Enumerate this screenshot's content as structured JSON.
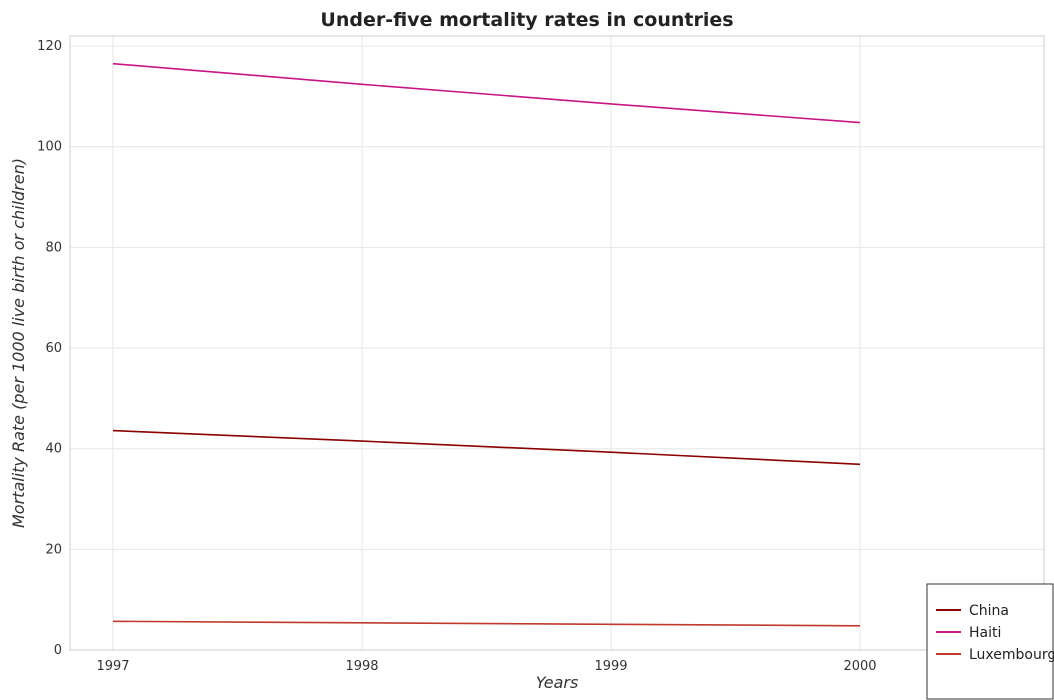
{
  "chart_data": {
    "type": "line",
    "title": "Under-five mortality rates in countries",
    "xlabel": "Years",
    "ylabel": "Mortality Rate (per 1000 live birth or children)",
    "categories": [
      "1997",
      "1998",
      "1999",
      "2000"
    ],
    "ylim": [
      0,
      122
    ],
    "yticks": [
      0,
      20,
      40,
      60,
      80,
      100,
      120
    ],
    "yticks_labels": [
      "0",
      "20",
      "40",
      "60",
      "80",
      "100",
      "120"
    ],
    "grid": true,
    "legend_position": "bottom-right",
    "series": [
      {
        "name": "China",
        "color": "#8b0000",
        "values": [
          43.6,
          41.5,
          39.3,
          36.9
        ]
      },
      {
        "name": "Haiti",
        "color": "#c71585",
        "values": [
          116.5,
          112.4,
          108.5,
          104.8
        ]
      },
      {
        "name": "Luxembourg",
        "color": "#c0392b",
        "values": [
          5.7,
          5.4,
          5.1,
          4.8
        ]
      }
    ]
  }
}
